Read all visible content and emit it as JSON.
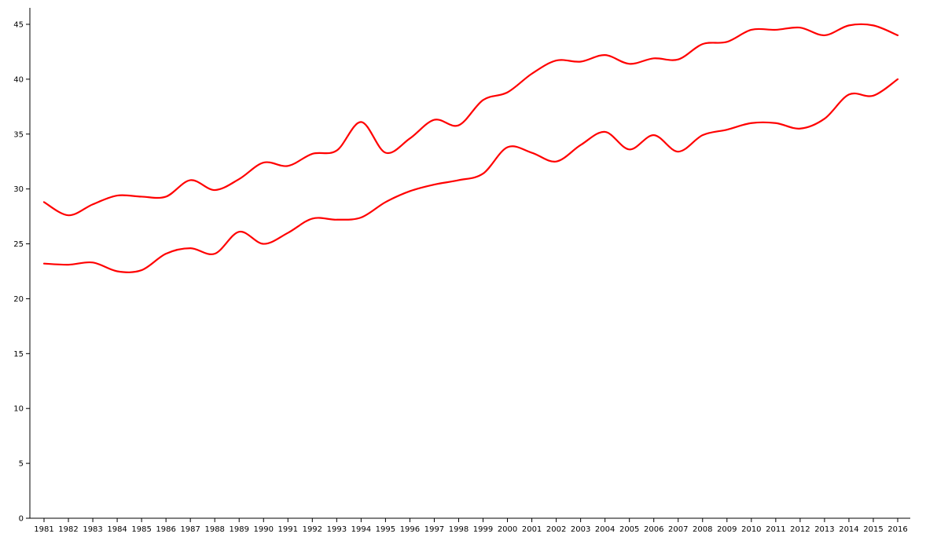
{
  "chart_data": {
    "type": "line",
    "title": "",
    "xlabel": "",
    "ylabel": "",
    "x": [
      "1981",
      "1982",
      "1983",
      "1984",
      "1985",
      "1986",
      "1987",
      "1988",
      "1989",
      "1990",
      "1991",
      "1992",
      "1993",
      "1994",
      "1995",
      "1996",
      "1997",
      "1998",
      "1999",
      "2000",
      "2001",
      "2002",
      "2003",
      "2004",
      "2005",
      "2006",
      "2007",
      "2008",
      "2009",
      "2010",
      "2011",
      "2012",
      "2013",
      "2014",
      "2015",
      "2016"
    ],
    "ylim": [
      0,
      46.5
    ],
    "yticks": [
      "0",
      "5",
      "10",
      "15",
      "20",
      "25",
      "30",
      "35",
      "40",
      "45"
    ],
    "grid": false,
    "legend": "none",
    "series": [
      {
        "color": "#ff0000",
        "values": [
          28.8,
          27.6,
          28.6,
          29.4,
          29.3,
          29.3,
          30.8,
          29.9,
          30.9,
          32.4,
          32.1,
          33.2,
          33.5,
          36.1,
          33.3,
          34.6,
          36.3,
          35.8,
          38.1,
          38.8,
          40.5,
          41.7,
          41.6,
          42.2,
          41.4,
          41.9,
          41.8,
          43.2,
          43.4,
          44.5,
          44.5,
          44.7,
          44.0,
          44.9,
          44.9,
          44.0
        ]
      },
      {
        "color": "#ff0000",
        "values": [
          23.2,
          23.1,
          23.3,
          22.5,
          22.6,
          24.1,
          24.6,
          24.1,
          26.1,
          25.0,
          26.0,
          27.3,
          27.2,
          27.4,
          28.8,
          29.8,
          30.4,
          30.8,
          31.4,
          33.8,
          33.3,
          32.5,
          34.0,
          35.2,
          33.6,
          34.9,
          33.4,
          34.9,
          35.4,
          36.0,
          36.0,
          35.5,
          36.4,
          38.6,
          38.5,
          40.0
        ]
      }
    ]
  }
}
